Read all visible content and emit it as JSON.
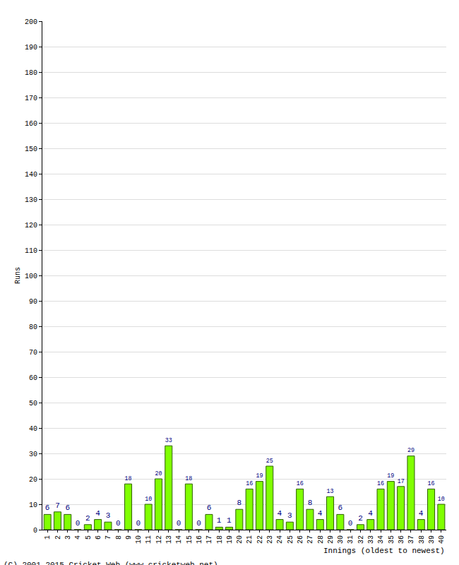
{
  "chart_data": {
    "type": "bar",
    "x_label": "Innings (oldest to newest)",
    "y_label": "Runs",
    "annotations": [
      "(C) 2001-2015 Cricket Web (www.cricketweb.net)"
    ],
    "categories": [
      "1",
      "2",
      "3",
      "4",
      "5",
      "6",
      "7",
      "8",
      "9",
      "10",
      "11",
      "12",
      "13",
      "14",
      "15",
      "16",
      "17",
      "18",
      "19",
      "20",
      "21",
      "22",
      "23",
      "24",
      "25",
      "26",
      "27",
      "28",
      "29",
      "30",
      "31",
      "32",
      "33",
      "34",
      "35",
      "36",
      "37",
      "38",
      "39",
      "40"
    ],
    "values": [
      6,
      7,
      6,
      0,
      2,
      4,
      3,
      0,
      18,
      0,
      10,
      20,
      33,
      0,
      18,
      0,
      6,
      1,
      1,
      8,
      16,
      19,
      25,
      4,
      3,
      16,
      8,
      4,
      13,
      6,
      0,
      2,
      4,
      16,
      19,
      17,
      29,
      4,
      16,
      10
    ],
    "color": "#80ff00",
    "ylim": [
      0,
      200
    ],
    "yticks": [
      0,
      10,
      20,
      30,
      40,
      50,
      60,
      70,
      80,
      90,
      100,
      110,
      120,
      130,
      140,
      150,
      160,
      170,
      180,
      190,
      200
    ],
    "grid": true,
    "data_labels": true
  }
}
